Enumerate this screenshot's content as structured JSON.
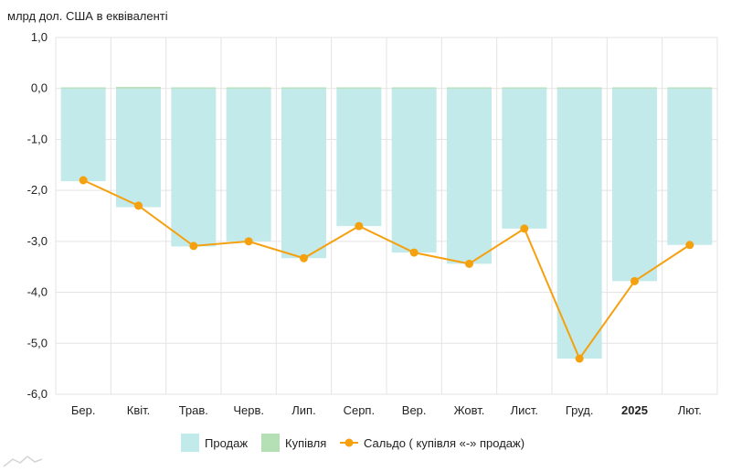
{
  "chart_data": {
    "type": "bar",
    "unit_label": "млрд дол. США в еквіваленті",
    "categories": [
      "Бер.",
      "Квіт.",
      "Трав.",
      "Черв.",
      "Лип.",
      "Серп.",
      "Вер.",
      "Жовт.",
      "Лист.",
      "Груд.",
      "2025",
      "Лют."
    ],
    "bold_categories": [
      "2025"
    ],
    "yticks": [
      "1,0",
      "0,0",
      "-1,0",
      "-2,0",
      "-3,0",
      "-4,0",
      "-5,0",
      "-6,0"
    ],
    "ylim": [
      -6,
      1
    ],
    "grid": true,
    "legend_position": "bottom",
    "series": [
      {
        "name": "Продаж",
        "kind": "bar",
        "color": "#c3eaea",
        "values": [
          -1.82,
          -2.33,
          -3.1,
          -3.0,
          -3.33,
          -2.7,
          -3.22,
          -3.44,
          -2.75,
          -5.3,
          -3.78,
          -3.07
        ]
      },
      {
        "name": "Купівля",
        "kind": "bar",
        "color": "#b5e0b5",
        "values": [
          0.02,
          0.03,
          0.01,
          0.0,
          0.0,
          0.0,
          0.0,
          0.0,
          0.0,
          0.0,
          0.0,
          0.0
        ]
      },
      {
        "name": "Сальдо ( купівля «-» продаж)",
        "kind": "line",
        "color": "#f5a00f",
        "values": [
          -1.8,
          -2.3,
          -3.09,
          -3.0,
          -3.33,
          -2.7,
          -3.22,
          -3.44,
          -2.75,
          -5.3,
          -3.78,
          -3.07
        ]
      }
    ]
  }
}
